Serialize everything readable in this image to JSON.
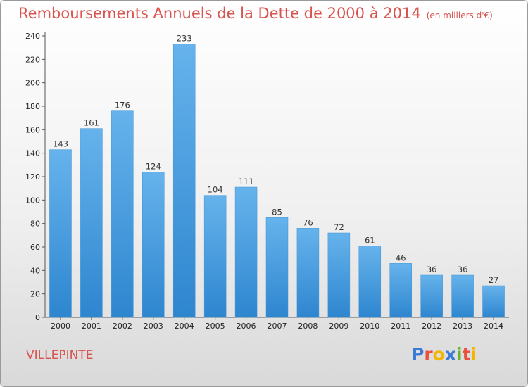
{
  "title": "Remboursements Annuels de la Dette de 2000 à 2014",
  "title_unit": "(en milliers d'€)",
  "commune": "VILLEPINTE",
  "logo": {
    "text": "Proxiti",
    "letters": [
      {
        "char": "P",
        "color": "#3a7bd5"
      },
      {
        "char": "r",
        "color": "#e94f3b"
      },
      {
        "char": "o",
        "color": "#f5b400"
      },
      {
        "char": "x",
        "color": "#3a7bd5"
      },
      {
        "char": "i",
        "color": "#6ab42d"
      },
      {
        "char": "t",
        "color": "#e94f3b"
      },
      {
        "char": "i",
        "color": "#f5b400"
      }
    ]
  },
  "colors": {
    "bar_top": "#66b3ec",
    "bar_bottom": "#2e86cf",
    "text_red": "#d9534f"
  },
  "chart_data": {
    "type": "bar",
    "title": "Remboursements Annuels de la Dette de 2000 à 2014",
    "categories": [
      "2000",
      "2001",
      "2002",
      "2003",
      "2004",
      "2005",
      "2006",
      "2007",
      "2008",
      "2009",
      "2010",
      "2011",
      "2012",
      "2013",
      "2014"
    ],
    "values": [
      143,
      161,
      176,
      124,
      233,
      104,
      111,
      85,
      76,
      72,
      61,
      46,
      36,
      36,
      27
    ],
    "ylim": [
      0,
      240
    ],
    "yticks": [
      0,
      20,
      40,
      60,
      80,
      100,
      120,
      140,
      160,
      180,
      200,
      220,
      240
    ],
    "grid": false
  }
}
